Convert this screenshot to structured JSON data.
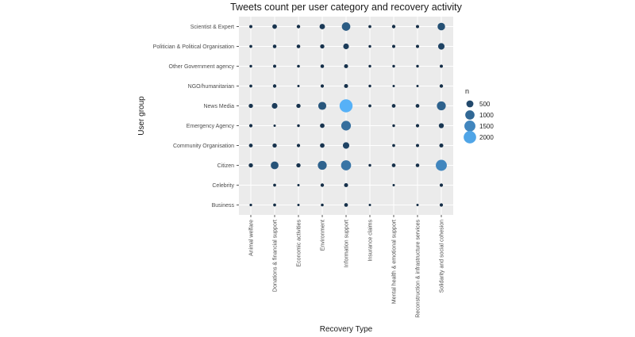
{
  "chart_data": {
    "type": "scatter",
    "title": "Tweets count per user category and recovery activity",
    "xlabel": "Recovery Type",
    "ylabel": "User group",
    "x_categories": [
      "Animal welfare",
      "Donations & financial support",
      "Economic activities",
      "Environment",
      "Information support",
      "Insurance claims",
      "Mental health & emotional support",
      "Reconstruction & infrastructure services",
      "Solidarity and social cohesion"
    ],
    "y_categories": [
      "Scientist & Expert",
      "Politician & Political Organisation",
      "Other Government agency",
      "NGO/humanitarian",
      "News Media",
      "Emergency Agency",
      "Community Organisation",
      "Citizen",
      "Celebrity",
      "Business"
    ],
    "values": [
      [
        40,
        150,
        60,
        250,
        800,
        30,
        60,
        40,
        600
      ],
      [
        30,
        70,
        70,
        120,
        280,
        20,
        40,
        40,
        400
      ],
      [
        20,
        40,
        25,
        70,
        100,
        20,
        20,
        20,
        40
      ],
      [
        30,
        60,
        10,
        50,
        100,
        20,
        10,
        10,
        60
      ],
      [
        120,
        280,
        120,
        700,
        2200,
        30,
        80,
        80,
        900
      ],
      [
        50,
        10,
        20,
        150,
        1100,
        null,
        20,
        50,
        200
      ],
      [
        80,
        120,
        50,
        150,
        400,
        null,
        30,
        40,
        100
      ],
      [
        120,
        650,
        120,
        900,
        1200,
        20,
        80,
        70,
        1500
      ],
      [
        null,
        30,
        10,
        60,
        100,
        null,
        10,
        null,
        50
      ],
      [
        15,
        30,
        10,
        25,
        80,
        10,
        null,
        10,
        50
      ]
    ],
    "size_legend": {
      "title": "n",
      "entries": [
        {
          "label": "500",
          "value": 500
        },
        {
          "label": "1000",
          "value": 1000
        },
        {
          "label": "1500",
          "value": 1500
        },
        {
          "label": "2000",
          "value": 2000
        }
      ]
    },
    "value_range": [
      0,
      2200
    ],
    "colors": {
      "low": "#132b43",
      "high": "#56b1f7",
      "panel": "#ebebeb",
      "grid": "#ffffff"
    },
    "grid": true,
    "legend_position": "right"
  }
}
